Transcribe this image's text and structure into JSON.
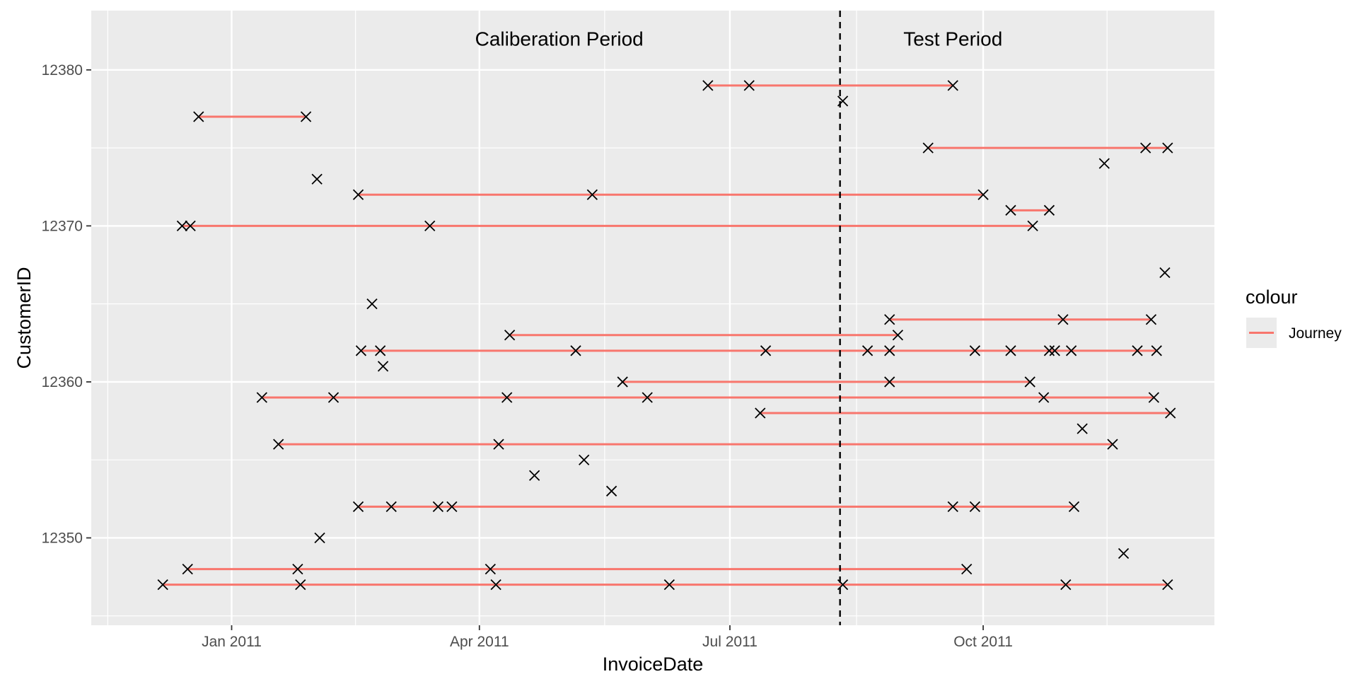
{
  "chart_data": {
    "type": "scatter",
    "title": "",
    "xlabel": "InvoiceDate",
    "ylabel": "CustomerID",
    "x_ticks": [
      "Jan 2011",
      "Apr 2011",
      "Jul 2011",
      "Oct 2011"
    ],
    "y_ticks": [
      12350,
      12360,
      12370,
      12380
    ],
    "xlim": [
      "2010-11-11",
      "2011-12-24"
    ],
    "ylim": [
      12344.4,
      12383.8
    ],
    "grid": true,
    "legend": {
      "title": "colour",
      "position": "right",
      "entries": [
        {
          "label": "Journey",
          "color": "#F8766D"
        }
      ]
    },
    "cutoff_date": "2011-08-10",
    "annotations": [
      {
        "text": "Caliberation Period",
        "x": "2011-04-30",
        "y": 12382
      },
      {
        "text": "Test Period",
        "x": "2011-09-20",
        "y": 12382
      }
    ],
    "journey_color": "#F8766D",
    "point_color": "#000000",
    "customers": [
      {
        "id": 12347,
        "dates": [
          "2010-12-07",
          "2011-01-26",
          "2011-04-07",
          "2011-06-09",
          "2011-08-11",
          "2011-10-31",
          "2011-12-07"
        ]
      },
      {
        "id": 12348,
        "dates": [
          "2010-12-16",
          "2011-01-25",
          "2011-04-05",
          "2011-09-25"
        ]
      },
      {
        "id": 12349,
        "dates": [
          "2011-11-21"
        ]
      },
      {
        "id": 12350,
        "dates": [
          "2011-02-02"
        ]
      },
      {
        "id": 12352,
        "dates": [
          "2011-02-16",
          "2011-02-28",
          "2011-03-17",
          "2011-03-22",
          "2011-09-20",
          "2011-09-28",
          "2011-11-03"
        ]
      },
      {
        "id": 12353,
        "dates": [
          "2011-05-19"
        ]
      },
      {
        "id": 12354,
        "dates": [
          "2011-04-21"
        ]
      },
      {
        "id": 12355,
        "dates": [
          "2011-05-09"
        ]
      },
      {
        "id": 12356,
        "dates": [
          "2011-01-18",
          "2011-04-08",
          "2011-11-17"
        ]
      },
      {
        "id": 12357,
        "dates": [
          "2011-11-06"
        ]
      },
      {
        "id": 12358,
        "dates": [
          "2011-07-12",
          "2011-12-08"
        ]
      },
      {
        "id": 12359,
        "dates": [
          "2011-01-12",
          "2011-02-07",
          "2011-04-11",
          "2011-06-01",
          "2011-10-23",
          "2011-12-02"
        ]
      },
      {
        "id": 12360,
        "dates": [
          "2011-05-23",
          "2011-08-28",
          "2011-10-18"
        ]
      },
      {
        "id": 12361,
        "dates": [
          "2011-02-25"
        ]
      },
      {
        "id": 12362,
        "dates": [
          "2011-02-17",
          "2011-02-24",
          "2011-05-06",
          "2011-07-14",
          "2011-08-20",
          "2011-08-28",
          "2011-09-28",
          "2011-10-11",
          "2011-10-25",
          "2011-10-27",
          "2011-11-02",
          "2011-11-26",
          "2011-12-03"
        ]
      },
      {
        "id": 12363,
        "dates": [
          "2011-04-12",
          "2011-08-31"
        ]
      },
      {
        "id": 12364,
        "dates": [
          "2011-08-28",
          "2011-10-30",
          "2011-12-01"
        ]
      },
      {
        "id": 12365,
        "dates": [
          "2011-02-21"
        ]
      },
      {
        "id": 12367,
        "dates": [
          "2011-12-06"
        ]
      },
      {
        "id": 12370,
        "dates": [
          "2010-12-14",
          "2010-12-17",
          "2011-03-14",
          "2011-10-19"
        ]
      },
      {
        "id": 12371,
        "dates": [
          "2011-10-11",
          "2011-10-25"
        ]
      },
      {
        "id": 12372,
        "dates": [
          "2011-02-16",
          "2011-05-12",
          "2011-10-01"
        ]
      },
      {
        "id": 12373,
        "dates": [
          "2011-02-01"
        ]
      },
      {
        "id": 12374,
        "dates": [
          "2011-11-14"
        ]
      },
      {
        "id": 12375,
        "dates": [
          "2011-09-11",
          "2011-11-29",
          "2011-12-07"
        ]
      },
      {
        "id": 12377,
        "dates": [
          "2010-12-20",
          "2011-01-28"
        ]
      },
      {
        "id": 12378,
        "dates": [
          "2011-08-11"
        ]
      },
      {
        "id": 12379,
        "dates": [
          "2011-06-23",
          "2011-07-08",
          "2011-09-20"
        ]
      }
    ]
  }
}
